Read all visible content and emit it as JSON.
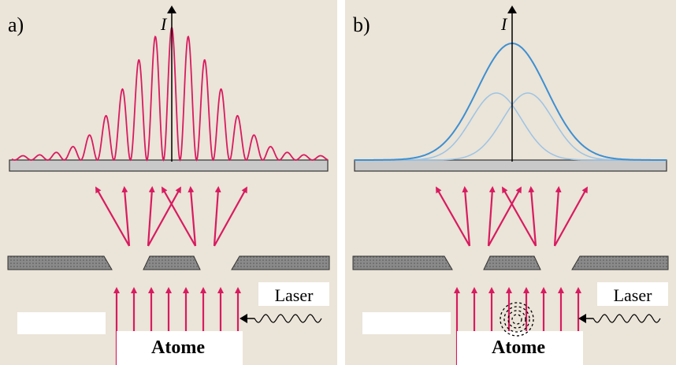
{
  "panels": [
    {
      "label": "a)",
      "axis_label": "I",
      "laser": "Laser",
      "source": "Atome"
    },
    {
      "label": "b)",
      "axis_label": "I",
      "laser": "Laser",
      "source": "Atome"
    }
  ]
}
